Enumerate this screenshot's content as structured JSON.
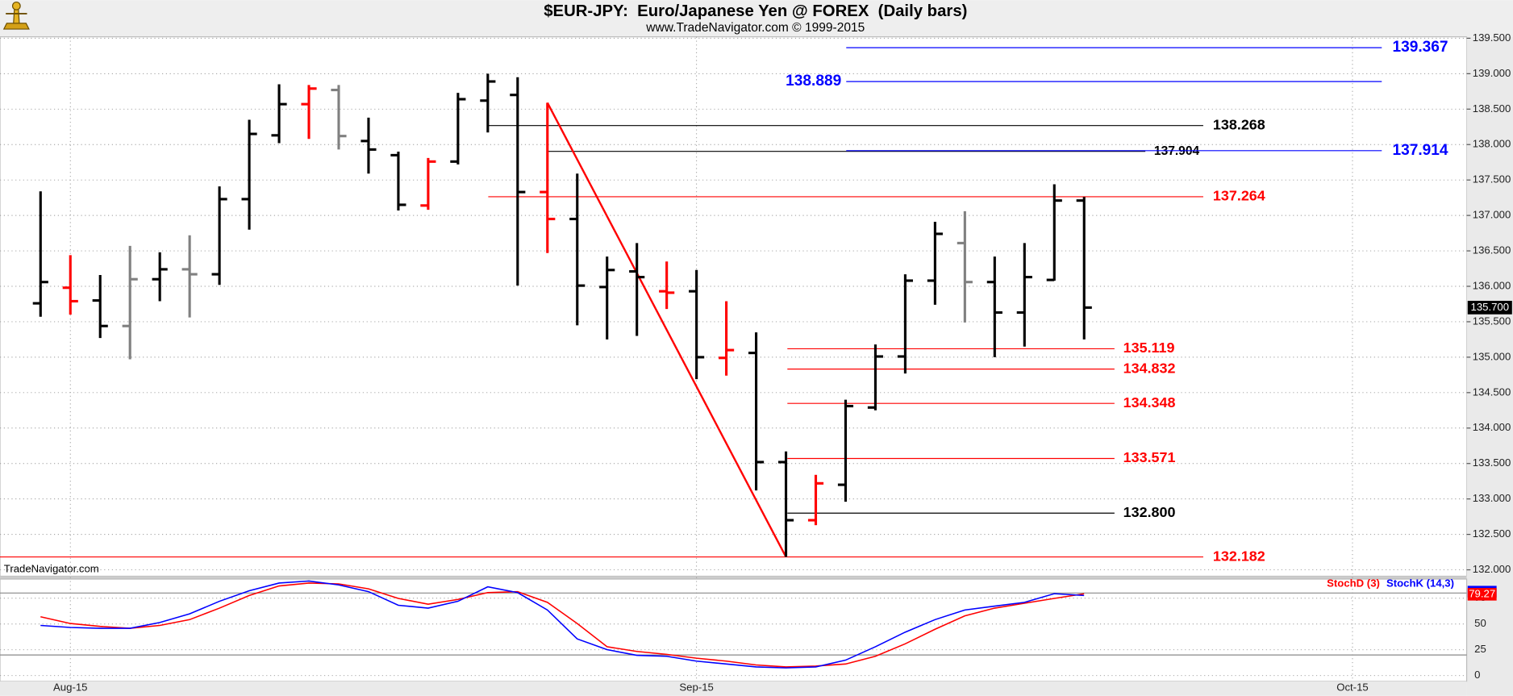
{
  "chart_data": [
    {
      "type": "ohlc",
      "title": "$EUR-JPY:  Euro/Japanese Yen @ FOREX  (Daily bars)",
      "subtitle": "www.TradeNavigator.com © 1999-2015",
      "watermark": "TradeNavigator.com",
      "categories": [
        null,
        null,
        null,
        null,
        null,
        null,
        null,
        null,
        null,
        null,
        null,
        null,
        null,
        null,
        null,
        null,
        null,
        null,
        null,
        null,
        null,
        null,
        null,
        null,
        null,
        null,
        null,
        null,
        null,
        null,
        null,
        null,
        null,
        null,
        null,
        null
      ],
      "open": [
        135.76,
        135.98,
        135.8,
        135.44,
        136.1,
        136.24,
        136.17,
        137.23,
        138.13,
        138.57,
        138.77,
        138.05,
        137.85,
        137.14,
        137.76,
        138.62,
        138.7,
        137.33,
        136.95,
        135.99,
        136.21,
        135.93,
        135.93,
        134.99,
        135.06,
        133.52,
        132.7,
        133.2,
        134.29,
        135.01,
        136.08,
        136.61,
        136.06,
        135.63,
        136.09,
        137.21
      ],
      "high": [
        137.34,
        136.44,
        136.16,
        136.57,
        136.48,
        136.72,
        137.41,
        138.35,
        138.85,
        138.84,
        138.84,
        138.38,
        137.9,
        137.81,
        138.73,
        139.0,
        138.95,
        138.59,
        137.59,
        136.42,
        136.61,
        136.35,
        136.23,
        135.79,
        135.35,
        133.67,
        133.34,
        134.4,
        135.18,
        136.17,
        136.91,
        137.06,
        136.42,
        136.61,
        137.44,
        137.26
      ],
      "low": [
        135.57,
        135.6,
        135.27,
        134.97,
        135.79,
        135.56,
        136.02,
        136.8,
        138.02,
        138.08,
        137.93,
        137.59,
        137.07,
        137.08,
        137.72,
        138.17,
        136.01,
        136.47,
        135.45,
        135.25,
        135.3,
        135.68,
        134.69,
        134.74,
        133.12,
        132.182,
        132.63,
        132.96,
        134.25,
        134.77,
        135.74,
        135.49,
        135.0,
        135.15,
        136.08,
        135.25
      ],
      "close": [
        136.06,
        135.79,
        135.44,
        136.1,
        136.24,
        136.17,
        137.23,
        138.15,
        138.57,
        138.79,
        138.12,
        137.93,
        137.15,
        137.76,
        138.64,
        138.89,
        137.33,
        136.95,
        136.01,
        136.23,
        136.13,
        135.91,
        135.0,
        135.1,
        133.52,
        132.7,
        133.22,
        134.31,
        135.01,
        136.08,
        136.74,
        136.06,
        135.63,
        136.13,
        137.21,
        135.7
      ],
      "bar_colors": [
        "#000000",
        "#ff0000",
        "#000000",
        "#808080",
        "#000000",
        "#808080",
        "#000000",
        "#000000",
        "#000000",
        "#ff0000",
        "#808080",
        "#000000",
        "#000000",
        "#ff0000",
        "#000000",
        "#000000",
        "#000000",
        "#ff0000",
        "#000000",
        "#000000",
        "#000000",
        "#ff0000",
        "#000000",
        "#ff0000",
        "#000000",
        "#000000",
        "#ff0000",
        "#000000",
        "#000000",
        "#000000",
        "#000000",
        "#808080",
        "#000000",
        "#000000",
        "#000000",
        "#000000"
      ],
      "xlim": [
        -1.36,
        47.83
      ],
      "xticks": [
        {
          "value": 1,
          "label": "Aug-15"
        },
        {
          "value": 22,
          "label": "Sep-15"
        },
        {
          "value": 44,
          "label": "Oct-15"
        }
      ],
      "ylim": [
        131.91,
        139.52
      ],
      "yticks": [
        {
          "value": 132,
          "label": "132.000"
        },
        {
          "value": 132.5,
          "label": "132.500"
        },
        {
          "value": 133,
          "label": "133.000"
        },
        {
          "value": 133.5,
          "label": "133.500"
        },
        {
          "value": 134,
          "label": "134.000"
        },
        {
          "value": 134.5,
          "label": "134.500"
        },
        {
          "value": 135,
          "label": "135.000"
        },
        {
          "value": 135.5,
          "label": "135.500"
        },
        {
          "value": 136,
          "label": "136.000"
        },
        {
          "value": 136.5,
          "label": "136.500"
        },
        {
          "value": 137,
          "label": "137.000"
        },
        {
          "value": 137.5,
          "label": "137.500"
        },
        {
          "value": 138,
          "label": "138.000"
        },
        {
          "value": 138.5,
          "label": "138.500"
        },
        {
          "value": 139,
          "label": "139.000"
        },
        {
          "value": 139.5,
          "label": "139.500"
        }
      ],
      "grid": true,
      "last_price": {
        "value": 135.7,
        "label": "135.700"
      },
      "trendline_color": "#ff0000",
      "levels": [
        {
          "value": 139.367,
          "color": "#0000ff"
        },
        {
          "value": 138.889,
          "color": "#0000ff"
        },
        {
          "value": 138.268,
          "color": "#000000"
        },
        {
          "value": 137.904,
          "color": "#000000"
        },
        {
          "value": 137.914,
          "color": "#0000ff"
        },
        {
          "value": 137.264,
          "color": "#ff0000"
        },
        {
          "value": 135.119,
          "color": "#ff0000"
        },
        {
          "value": 134.832,
          "color": "#ff0000"
        },
        {
          "value": 134.348,
          "color": "#ff0000"
        },
        {
          "value": 133.571,
          "color": "#ff0000"
        },
        {
          "value": 132.8,
          "label": "132.800",
          "color": "#000000"
        },
        {
          "value": 132.182,
          "color": "#ff0000"
        }
      ]
    },
    {
      "type": "line",
      "series": [
        {
          "name": "StochD (3)",
          "color": "#ff0000",
          "values": [
            57.0,
            50.5,
            47.7,
            45.8,
            48.6,
            54.2,
            65.4,
            77.6,
            86.9,
            89.7,
            88.8,
            84.1,
            74.8,
            69.2,
            73.8,
            80.4,
            81.3,
            71.0,
            50.5,
            28.0,
            23.4,
            20.6,
            16.8,
            14.0,
            10.3,
            8.4,
            9.3,
            11.2,
            18.7,
            30.8,
            44.9,
            57.9,
            65.4,
            70.1,
            74.8,
            79.27
          ]
        },
        {
          "name": "StochK (14,3)",
          "color": "#0000ff",
          "values": [
            48.6,
            46.7,
            45.8,
            45.8,
            51.4,
            59.8,
            72.0,
            82.2,
            89.7,
            91.6,
            87.9,
            81.3,
            68.2,
            65.4,
            72.0,
            86.0,
            80.4,
            63.6,
            35.5,
            25.2,
            19.6,
            18.7,
            14.0,
            11.2,
            8.4,
            7.5,
            8.4,
            15.0,
            28.0,
            42.1,
            54.2,
            63.6,
            67.3,
            71.0,
            79.4,
            77.6
          ]
        }
      ],
      "ylim": [
        -5.6,
        93.5
      ],
      "yticks": [
        0,
        25,
        50,
        75
      ],
      "grid": true,
      "levels": [
        20,
        80
      ]
    }
  ]
}
